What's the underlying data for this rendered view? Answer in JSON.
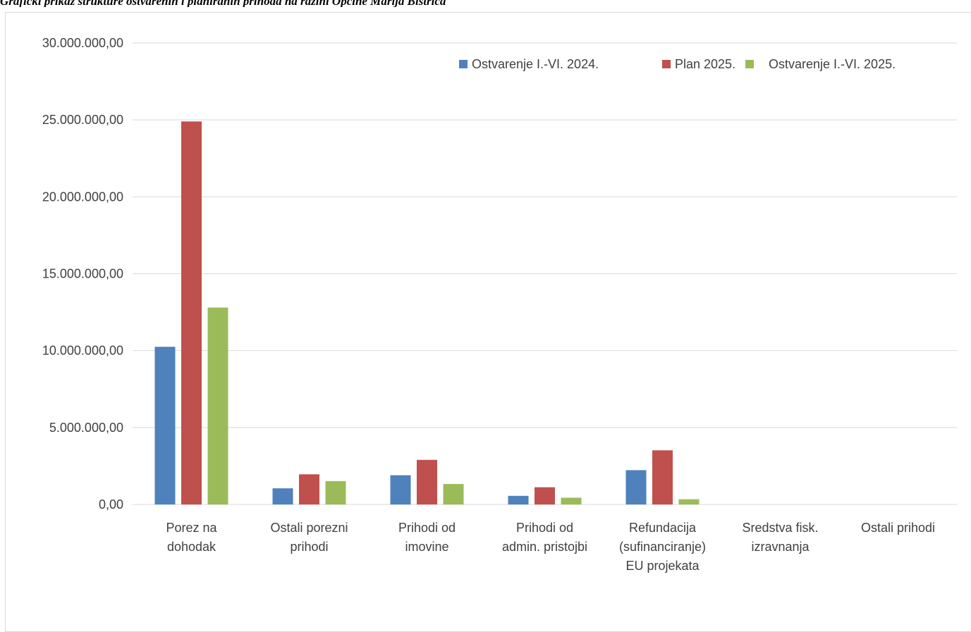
{
  "caption": "Grafički prikaz strukture ostvarenih i planiranih prihoda na razini Općine Marija Bistrica",
  "colors": {
    "series1": "#4F81BD",
    "series2": "#C0504D",
    "series3": "#9BBB59",
    "grid": "#d9d9d9",
    "text": "#404040"
  },
  "chart_data": {
    "type": "bar",
    "categories": [
      [
        "Porez na",
        "dohodak"
      ],
      [
        "Ostali porezni",
        "prihodi"
      ],
      [
        "Prihodi od",
        "imovine"
      ],
      [
        "Prihodi od",
        "admin. pristojbi"
      ],
      [
        "Refundacija",
        "(sufinanciranje)",
        "EU projekata"
      ],
      [
        "Sredstva fisk.",
        "izravnanja"
      ],
      [
        "Ostali prihodi"
      ]
    ],
    "series": [
      {
        "name": "Ostvarenje I.-VI. 2024.",
        "values": [
          10250000,
          1050000,
          1900000,
          560000,
          2230000,
          0,
          0
        ]
      },
      {
        "name": "Plan 2025.",
        "values": [
          24900000,
          1960000,
          2900000,
          1120000,
          3520000,
          0,
          0
        ]
      },
      {
        "name": "Ostvarenje I.-VI. 2025.",
        "values": [
          12800000,
          1520000,
          1330000,
          440000,
          340000,
          0,
          0
        ]
      }
    ],
    "yticks": [
      "0,00",
      "5.000.000,00",
      "10.000.000,00",
      "15.000.000,00",
      "20.000.000,00",
      "25.000.000,00",
      "30.000.000,00"
    ],
    "ylim": [
      0,
      30000000
    ],
    "grid": true,
    "legend_position": "top-right"
  }
}
